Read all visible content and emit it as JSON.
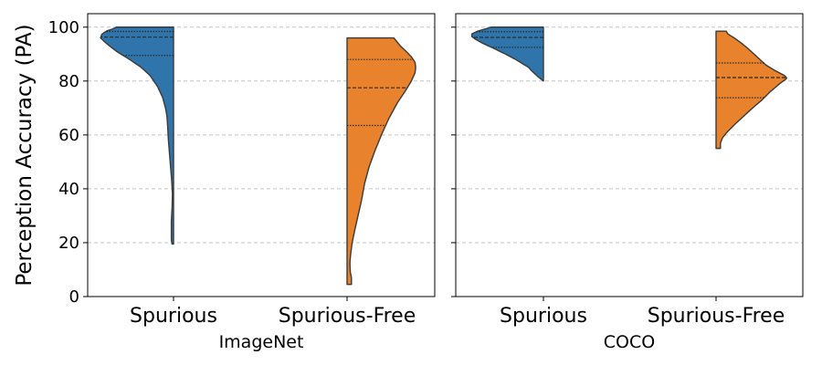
{
  "chart_data": {
    "type": "violin",
    "ylabel": "Perception Accuracy (PA)",
    "ylim": [
      0,
      105
    ],
    "yticks": [
      "0",
      "20",
      "40",
      "60",
      "80",
      "100"
    ],
    "ytick_values": [
      0,
      20,
      40,
      60,
      80,
      100
    ],
    "grid": "y-dashed",
    "colors": {
      "Spurious": "#2f75ab",
      "Spurious-Free": "#e8822c",
      "outline": "#3a3a3a"
    },
    "panels": [
      {
        "xlabel": "ImageNet",
        "categories": [
          "Spurious",
          "Spurious-Free"
        ],
        "series": [
          {
            "name": "Spurious",
            "side": "left",
            "range": [
              19.5,
              100
            ],
            "quartiles": [
              89.5,
              96.3,
              98.4
            ],
            "density": [
              [
                19.5,
                0.02
              ],
              [
                21,
                0.03
              ],
              [
                24,
                0.03
              ],
              [
                28,
                0.03
              ],
              [
                33,
                0.02
              ],
              [
                38,
                0.015
              ],
              [
                43,
                0.025
              ],
              [
                48,
                0.04
              ],
              [
                53,
                0.055
              ],
              [
                58,
                0.07
              ],
              [
                63,
                0.08
              ],
              [
                67,
                0.09
              ],
              [
                70,
                0.11
              ],
              [
                74,
                0.15
              ],
              [
                78,
                0.22
              ],
              [
                82,
                0.32
              ],
              [
                85,
                0.44
              ],
              [
                88,
                0.6
              ],
              [
                91,
                0.78
              ],
              [
                94,
                0.92
              ],
              [
                96,
                1.0
              ],
              [
                97.5,
                0.98
              ],
              [
                98.8,
                0.9
              ],
              [
                99.6,
                0.8
              ],
              [
                100,
                0.78
              ]
            ]
          },
          {
            "name": "Spurious-Free",
            "side": "right",
            "range": [
              4.5,
              96
            ],
            "quartiles": [
              63.5,
              77.5,
              88
            ],
            "density": [
              [
                4.5,
                0.06
              ],
              [
                7,
                0.06
              ],
              [
                9,
                0.045
              ],
              [
                11,
                0.04
              ],
              [
                13,
                0.04
              ],
              [
                16,
                0.05
              ],
              [
                20,
                0.07
              ],
              [
                24,
                0.1
              ],
              [
                30,
                0.15
              ],
              [
                36,
                0.2
              ],
              [
                42,
                0.24
              ],
              [
                48,
                0.3
              ],
              [
                54,
                0.38
              ],
              [
                60,
                0.47
              ],
              [
                66,
                0.57
              ],
              [
                72,
                0.69
              ],
              [
                76,
                0.79
              ],
              [
                80,
                0.88
              ],
              [
                83,
                0.93
              ],
              [
                85,
                0.94
              ],
              [
                87,
                0.93
              ],
              [
                89,
                0.88
              ],
              [
                91,
                0.81
              ],
              [
                93,
                0.73
              ],
              [
                95,
                0.67
              ],
              [
                96,
                0.64
              ]
            ]
          }
        ]
      },
      {
        "xlabel": "COCO",
        "categories": [
          "Spurious",
          "Spurious-Free"
        ],
        "series": [
          {
            "name": "Spurious",
            "side": "left",
            "range": [
              80,
              100
            ],
            "quartiles": [
              92.5,
              96.2,
              98.3
            ],
            "density": [
              [
                80,
                0.0
              ],
              [
                81.5,
                0.07
              ],
              [
                83,
                0.13
              ],
              [
                84,
                0.17
              ],
              [
                85,
                0.2
              ],
              [
                86,
                0.26
              ],
              [
                88,
                0.38
              ],
              [
                90,
                0.52
              ],
              [
                92,
                0.67
              ],
              [
                94,
                0.83
              ],
              [
                95.5,
                0.93
              ],
              [
                96.5,
                0.98
              ],
              [
                97.5,
                0.98
              ],
              [
                98.5,
                0.9
              ],
              [
                99.3,
                0.8
              ],
              [
                100,
                0.72
              ]
            ]
          },
          {
            "name": "Spurious-Free",
            "side": "right",
            "range": [
              55,
              98.5
            ],
            "quartiles": [
              73.8,
              81.3,
              86.7
            ],
            "density": [
              [
                55,
                0.06
              ],
              [
                57,
                0.06
              ],
              [
                59,
                0.09
              ],
              [
                61,
                0.15
              ],
              [
                64,
                0.26
              ],
              [
                67,
                0.38
              ],
              [
                70,
                0.5
              ],
              [
                73,
                0.63
              ],
              [
                76,
                0.74
              ],
              [
                79,
                0.87
              ],
              [
                81,
                0.97
              ],
              [
                82,
                0.94
              ],
              [
                84,
                0.8
              ],
              [
                86,
                0.68
              ],
              [
                88,
                0.6
              ],
              [
                90,
                0.52
              ],
              [
                92,
                0.44
              ],
              [
                94,
                0.35
              ],
              [
                96,
                0.25
              ],
              [
                97.5,
                0.16
              ],
              [
                98.5,
                0.14
              ]
            ]
          }
        ]
      }
    ]
  }
}
